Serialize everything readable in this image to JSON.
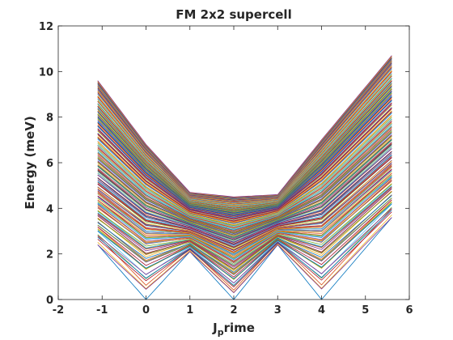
{
  "chart_data": {
    "type": "line",
    "title": "FM 2x2 supercell",
    "xlabel": "J_prime",
    "xlabel_main": "J",
    "xlabel_sub": "p",
    "xlabel_rest": "rime",
    "ylabel": "Energy (meV)",
    "xlim": [
      -2,
      6
    ],
    "ylim": [
      0,
      12
    ],
    "xticks": [
      "-2",
      "-1",
      "0",
      "1",
      "2",
      "3",
      "4",
      "5",
      "6"
    ],
    "yticks": [
      "0",
      "2",
      "4",
      "6",
      "8",
      "10",
      "12"
    ],
    "x": [
      -1.1,
      0,
      1,
      2,
      3,
      4,
      5.6
    ],
    "grid": false,
    "legend": "none",
    "band_count": 200,
    "series_note": "dense family of magnon band curves over the path -1.1 to 5.6",
    "bounds": {
      "upper": [
        9.6,
        6.8,
        4.7,
        4.5,
        4.6,
        7.0,
        10.7
      ],
      "lower": [
        2.4,
        0.0,
        2.1,
        0.0,
        2.4,
        0.0,
        3.6
      ]
    },
    "colors": [
      "#0072bd",
      "#d95319",
      "#edb120",
      "#7e2f8e",
      "#77ac30",
      "#4dbeee",
      "#a2142f"
    ]
  }
}
